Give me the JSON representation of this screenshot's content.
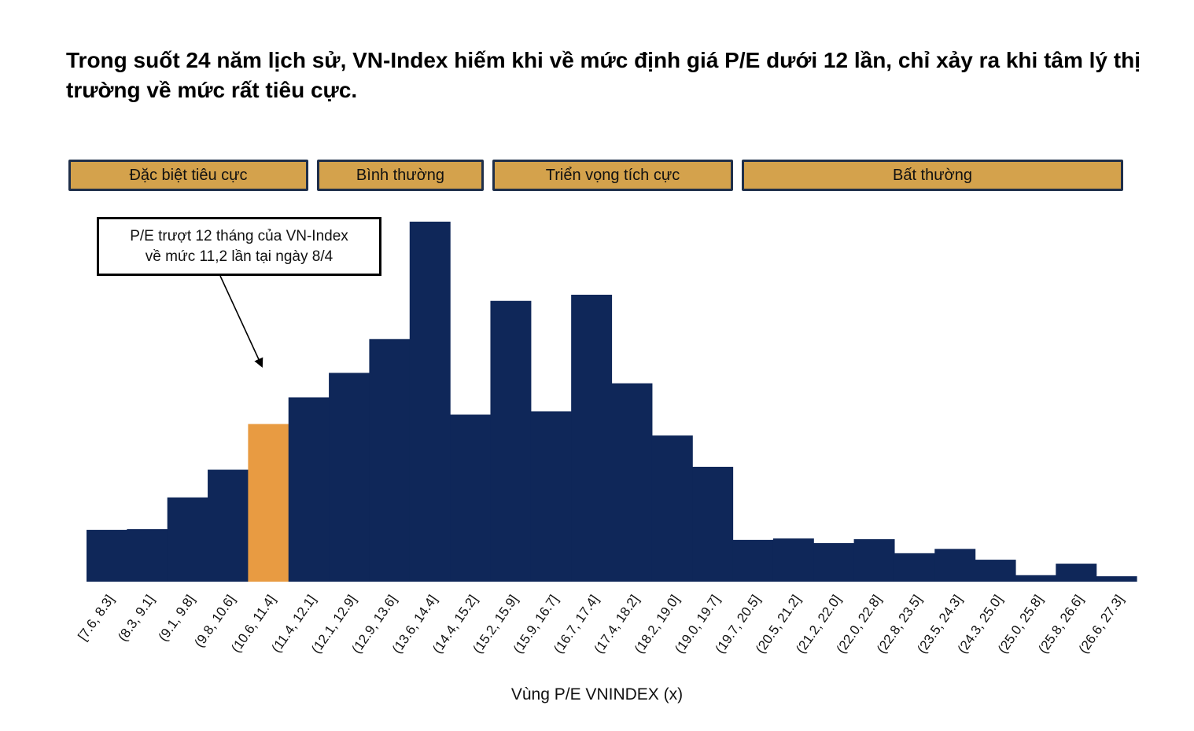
{
  "title": "Trong suốt 24 năm lịch sử, VN-Index hiếm khi về mức định giá P/E dưới 12 lần, chỉ xảy ra khi tâm lý thị trường về mức rất tiêu cực.",
  "zones": [
    {
      "label": "Đặc biệt tiêu cực"
    },
    {
      "label": "Bình thường"
    },
    {
      "label": "Triển vọng tích cực"
    },
    {
      "label": "Bất thường"
    }
  ],
  "callout": {
    "line1": "P/E trượt 12 tháng của VN-Index",
    "line2": "về mức 11,2 lần tại ngày 8/4"
  },
  "colors": {
    "bar": "#0f2759",
    "highlight": "#e89b42",
    "zone_fill": "#d4a24c",
    "zone_border": "#1f2f4a"
  },
  "chart_data": {
    "type": "bar",
    "title": "Trong suốt 24 năm lịch sử, VN-Index hiếm khi về mức định giá P/E dưới 12 lần, chỉ xảy ra khi tâm lý thị trường về mức rất tiêu cực.",
    "xlabel": "Vùng P/E VNINDEX (x)",
    "ylabel": "",
    "ylim": [
      0,
      100
    ],
    "grid": false,
    "highlight_category": "(10.6, 11.4]",
    "categories": [
      "[7.6, 8.3]",
      "(8.3, 9.1]",
      "(9.1, 9.8]",
      "(9.8, 10.6]",
      "(10.6, 11.4]",
      "(11.4, 12.1]",
      "(12.1, 12.9]",
      "(12.9, 13.6]",
      "(13.6, 14.4]",
      "(14.4, 15.2]",
      "(15.2, 15.9]",
      "(15.9, 16.7]",
      "(16.7, 17.4]",
      "(17.4, 18.2]",
      "(18.2, 19.0]",
      "(19.0, 19.7]",
      "(19.7, 20.5]",
      "(20.5, 21.2]",
      "(21.2, 22.0]",
      "(22.0, 22.8]",
      "(22.8, 23.5]",
      "(23.5, 24.3]",
      "(24.3, 25.0]",
      "(25.0, 25.8]",
      "(25.8, 26.6]",
      "(26.6, 27.3]"
    ],
    "values": [
      14.4,
      14.6,
      23.4,
      31.1,
      43.8,
      51.2,
      58.0,
      67.4,
      100.0,
      46.4,
      78.0,
      47.3,
      79.7,
      55.1,
      40.6,
      31.9,
      11.6,
      12.0,
      10.7,
      11.8,
      7.9,
      9.1,
      6.1,
      1.8,
      5.0,
      1.5
    ]
  }
}
